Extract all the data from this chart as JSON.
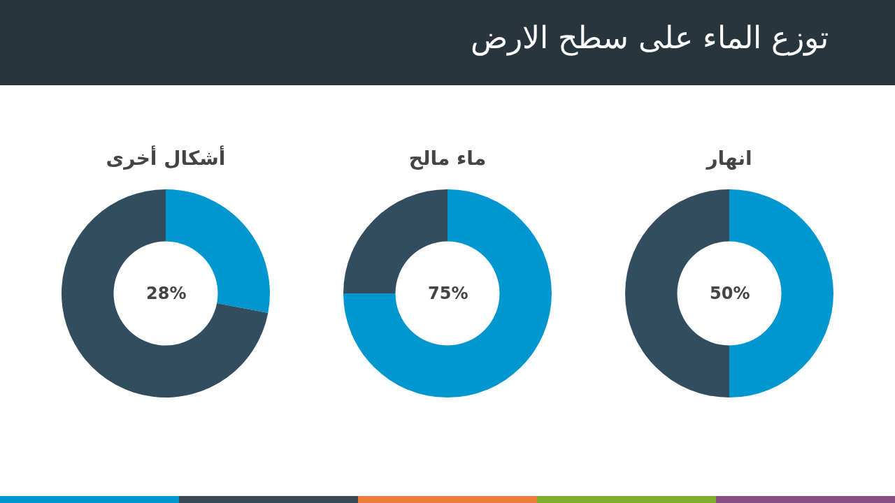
{
  "chart_data": [
    {
      "type": "other",
      "title": "توزع الماء على سطح الارض"
    },
    {
      "type": "donut",
      "title": "انهار",
      "categories": [
        null,
        null
      ],
      "values": [
        50,
        50
      ],
      "colors": [
        "#0096d0",
        "#314d5f"
      ],
      "annotations": [
        "50%"
      ]
    },
    {
      "type": "donut",
      "title": "ماء مالح",
      "categories": [
        null,
        null
      ],
      "values": [
        75,
        25
      ],
      "colors": [
        "#0096d0",
        "#314d5f"
      ],
      "annotations": [
        "75%"
      ]
    },
    {
      "type": "donut",
      "title": "أشكال أخرى",
      "categories": [
        null,
        null
      ],
      "values": [
        28,
        72
      ],
      "colors": [
        "#0096d0",
        "#314d5f"
      ],
      "annotations": [
        "28%"
      ]
    }
  ]
}
